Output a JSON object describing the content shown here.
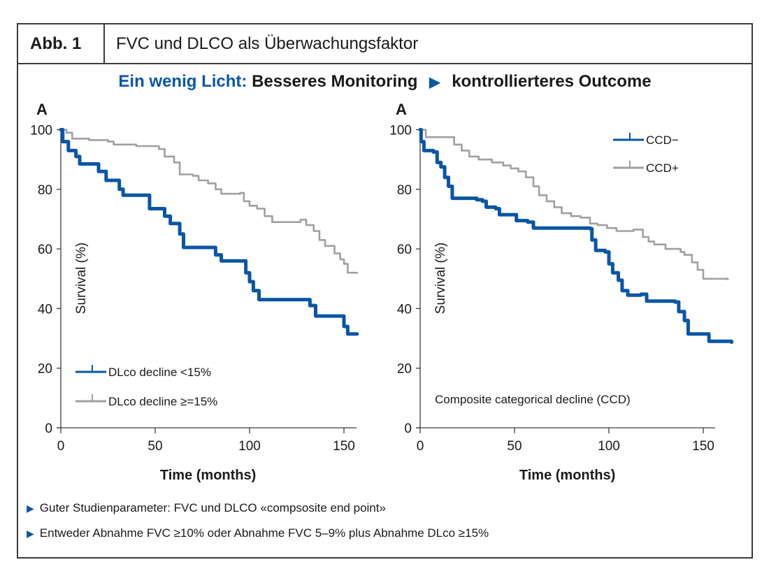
{
  "header": {
    "figure_label": "Abb. 1",
    "figure_title": "FVC und DLCO als Überwachungsfaktor",
    "headline_highlight": "Ein wenig Licht:",
    "headline_part1": "Besseres Monitoring",
    "headline_arrow": "▶",
    "headline_part2": "kontrollierteres Outcome"
  },
  "bullets": [
    {
      "icon": "triangle-right-icon",
      "glyph": "▶",
      "text": "Guter Studienparameter: FVC und DLCO «compsosite end point»"
    },
    {
      "icon": "triangle-right-icon",
      "glyph": "▶",
      "text": "Entweder Abnahme FVC ≥10% oder Abnahme FVC 5–9% plus Abnahme DLco ≥15%"
    }
  ],
  "colors": {
    "blue": "#0a56a5",
    "grey": "#a0a0a0",
    "text": "#1a1a1a",
    "frame": "#3c3c3c"
  },
  "chart_data": [
    {
      "type": "line",
      "step": true,
      "panel_label": "A",
      "title": "",
      "xlabel": "Time (months)",
      "ylabel": "Survival (%)",
      "xlim": [
        0,
        157
      ],
      "ylim": [
        0,
        100
      ],
      "xticks": [
        0,
        50,
        100,
        150
      ],
      "yticks": [
        0,
        20,
        40,
        60,
        80,
        100
      ],
      "grid": false,
      "legend_position": "bottom-left",
      "annotation": "",
      "series": [
        {
          "name": "DLco decline <15%",
          "color": "#0a56a5",
          "x": [
            0,
            1,
            4,
            8,
            10,
            20,
            24,
            30,
            31,
            33,
            46,
            47,
            53,
            55,
            58,
            62,
            63,
            65,
            80,
            82,
            85,
            97,
            98,
            100,
            102,
            105,
            130,
            132,
            135,
            148,
            150,
            152,
            157
          ],
          "y": [
            100,
            96,
            93,
            91,
            88.5,
            86,
            83,
            83,
            80,
            78,
            78,
            73.5,
            73.5,
            71,
            68.5,
            68.5,
            65,
            60.5,
            60.5,
            58,
            56,
            56,
            52,
            49,
            46,
            43,
            43,
            41,
            37.5,
            37.5,
            34,
            31.5,
            31.5
          ]
        },
        {
          "name": "DLco decline ≥=15%",
          "color": "#a0a0a0",
          "x": [
            0,
            3,
            6,
            15,
            25,
            28,
            40,
            52,
            55,
            60,
            63,
            70,
            73,
            78,
            82,
            85,
            95,
            97,
            100,
            104,
            108,
            112,
            125,
            127,
            130,
            134,
            137,
            140,
            145,
            148,
            150,
            152,
            157
          ],
          "y": [
            100,
            99,
            97,
            96.5,
            96,
            95,
            94.5,
            93.5,
            91,
            89,
            85,
            84.5,
            83,
            82,
            80,
            78.5,
            78.8,
            76,
            74.5,
            73.5,
            71,
            69,
            69,
            69.8,
            68,
            66,
            63,
            61,
            58.5,
            56.5,
            55,
            52,
            52
          ]
        }
      ]
    },
    {
      "type": "line",
      "step": true,
      "panel_label": "A",
      "title": "",
      "xlabel": "Time (months)",
      "ylabel": "Survival (%)",
      "xlim": [
        0,
        157
      ],
      "ylim": [
        0,
        100
      ],
      "xticks": [
        0,
        50,
        100,
        150
      ],
      "yticks": [
        0,
        20,
        40,
        60,
        80,
        100
      ],
      "grid": false,
      "legend_position": "top-right",
      "annotation": "Composite categorical decline (CCD)",
      "series": [
        {
          "name": "CCD−",
          "color": "#0a56a5",
          "x": [
            0,
            0.5,
            2,
            7,
            9,
            11,
            13,
            15,
            17,
            30,
            33,
            35,
            40,
            42,
            48,
            51,
            57,
            60,
            68,
            90,
            91,
            93,
            98,
            100,
            102,
            105,
            107,
            110,
            117,
            120,
            135,
            137,
            140,
            142,
            150,
            153,
            165
          ],
          "y": [
            100,
            96,
            93,
            92.5,
            89,
            87.5,
            84,
            81,
            77,
            76.5,
            76,
            74,
            73.5,
            71.5,
            71.5,
            69.5,
            69,
            67,
            67,
            66.8,
            63,
            59.5,
            59,
            55,
            52,
            49.5,
            46,
            44.5,
            44.8,
            42.5,
            42.2,
            39,
            36,
            31.5,
            31.5,
            29,
            28.7
          ]
        },
        {
          "name": "CCD+",
          "color": "#a0a0a0",
          "x": [
            0,
            3,
            14,
            18,
            22,
            26,
            31,
            38,
            44,
            48,
            52,
            56,
            60,
            63,
            67,
            71,
            75,
            80,
            85,
            90,
            94,
            99,
            104,
            113,
            118,
            121,
            124,
            130,
            138,
            140,
            144,
            147,
            150,
            163
          ],
          "y": [
            100,
            97.5,
            97.5,
            95,
            93,
            91,
            90,
            89,
            88,
            87,
            86,
            84,
            81,
            78,
            76,
            74,
            72,
            71,
            70.5,
            68.5,
            68,
            67,
            66,
            66.5,
            64,
            62.5,
            61.5,
            60,
            59,
            58,
            55.5,
            53,
            50,
            49.8
          ]
        }
      ]
    }
  ]
}
